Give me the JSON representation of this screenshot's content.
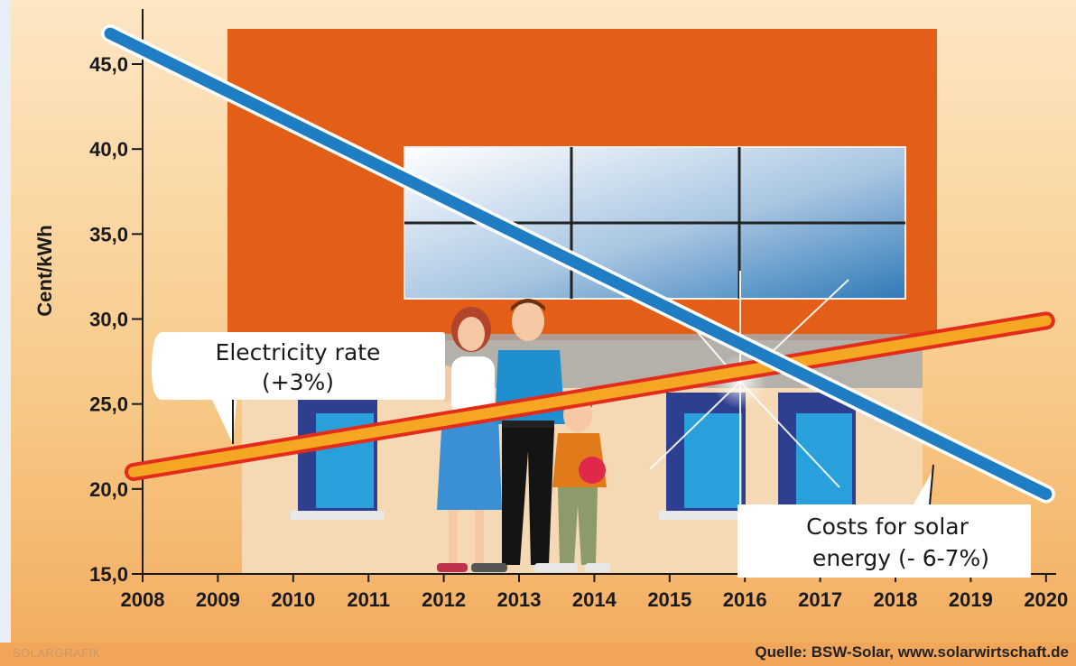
{
  "chart_data": {
    "type": "line",
    "categories": [
      "2008",
      "2009",
      "2010",
      "2011",
      "2012",
      "2013",
      "2014",
      "2015",
      "2016",
      "2017",
      "2018",
      "2019",
      "2020"
    ],
    "ylabel": "Cent/kWh",
    "ylim": [
      15,
      47
    ],
    "yticks": [
      "15,0",
      "20,0",
      "25,0",
      "30,0",
      "35,0",
      "40,0",
      "45,0"
    ],
    "ytick_values": [
      15,
      20,
      25,
      30,
      35,
      40,
      45
    ],
    "series": [
      {
        "name": "Electricity rate\n(+3%)",
        "color": "#f5a623",
        "outline": "#e32c1c",
        "x": [
          "2008",
          "2020"
        ],
        "values": [
          21.0,
          29.9
        ]
      },
      {
        "name": "Costs for solar\nenergy (- 6-7%)",
        "color": "#1f7dc4",
        "outline": "#ffffff",
        "x": [
          "2008",
          "2020"
        ],
        "values": [
          46.8,
          19.7
        ]
      }
    ],
    "intersection": {
      "x": "2016",
      "y": 26.2
    },
    "grid": false
  },
  "annotations": {
    "electricity": [
      "Electricity rate",
      "(+3%)"
    ],
    "solar": [
      "Costs for solar",
      "energy (- 6-7%)"
    ]
  },
  "footer": {
    "left": "SOLARGRAFIK",
    "right": "Quelle: BSW-Solar, www.solarwirtschaft.de"
  },
  "colors": {
    "background": "#f6c27a",
    "wall": "#f5d9b4",
    "roof": "#e35e16"
  }
}
